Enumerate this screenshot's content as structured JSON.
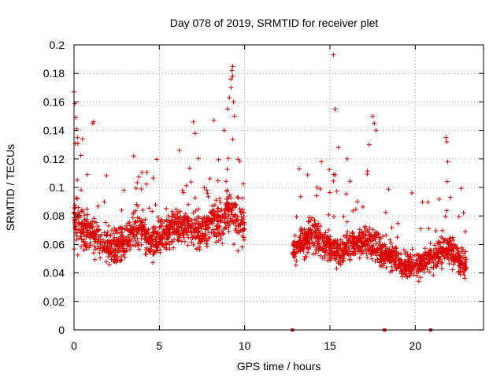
{
  "chart_data": {
    "type": "scatter",
    "title": "Day 078 of 2019, SRMTID for receiver plet",
    "xlabel": "GPS time / hours",
    "ylabel": "SRMTID / TECUs",
    "xlim": [
      0,
      24
    ],
    "ylim": [
      0,
      0.2
    ],
    "xticks": [
      0,
      5,
      10,
      15,
      20
    ],
    "xtick_labels": [
      "0",
      "5",
      "10",
      "15",
      "20"
    ],
    "yticks": [
      0,
      0.02,
      0.04,
      0.06,
      0.08,
      0.1,
      0.12,
      0.14,
      0.16,
      0.18,
      0.2
    ],
    "ytick_labels": [
      "0",
      "0.02",
      "0.04",
      "0.06",
      "0.08",
      "0.1",
      "0.12",
      "0.14",
      "0.16",
      "0.18",
      "0.2"
    ],
    "grid": true,
    "marker": "+",
    "color": "#dd0000",
    "series": [
      {
        "name": "plet",
        "segments": [
          {
            "x_start": 0.0,
            "x_end": 10.0,
            "profile": [
              [
                0.0,
                0.075,
                0.03
              ],
              [
                0.5,
                0.072,
                0.025
              ],
              [
                1.0,
                0.068,
                0.022
              ],
              [
                1.5,
                0.062,
                0.02
              ],
              [
                2.0,
                0.058,
                0.018
              ],
              [
                2.5,
                0.06,
                0.02
              ],
              [
                3.0,
                0.063,
                0.02
              ],
              [
                3.5,
                0.07,
                0.022
              ],
              [
                4.0,
                0.068,
                0.02
              ],
              [
                4.5,
                0.062,
                0.018
              ],
              [
                5.0,
                0.065,
                0.02
              ],
              [
                5.5,
                0.07,
                0.02
              ],
              [
                6.0,
                0.072,
                0.02
              ],
              [
                6.5,
                0.072,
                0.02
              ],
              [
                7.0,
                0.07,
                0.02
              ],
              [
                7.5,
                0.068,
                0.022
              ],
              [
                8.0,
                0.075,
                0.024
              ],
              [
                8.5,
                0.078,
                0.026
              ],
              [
                9.0,
                0.082,
                0.03
              ],
              [
                9.5,
                0.078,
                0.025
              ],
              [
                10.0,
                0.072,
                0.02
              ]
            ]
          },
          {
            "x_start": 12.8,
            "x_end": 23.0,
            "profile": [
              [
                12.8,
                0.055,
                0.015
              ],
              [
                13.5,
                0.062,
                0.018
              ],
              [
                14.0,
                0.068,
                0.02
              ],
              [
                14.5,
                0.062,
                0.018
              ],
              [
                15.0,
                0.058,
                0.016
              ],
              [
                15.5,
                0.055,
                0.016
              ],
              [
                16.0,
                0.058,
                0.016
              ],
              [
                16.5,
                0.06,
                0.018
              ],
              [
                17.0,
                0.062,
                0.018
              ],
              [
                17.5,
                0.062,
                0.02
              ],
              [
                18.0,
                0.055,
                0.018
              ],
              [
                18.5,
                0.052,
                0.016
              ],
              [
                19.0,
                0.048,
                0.016
              ],
              [
                19.5,
                0.046,
                0.016
              ],
              [
                20.0,
                0.045,
                0.016
              ],
              [
                20.5,
                0.046,
                0.016
              ],
              [
                21.0,
                0.05,
                0.016
              ],
              [
                21.5,
                0.055,
                0.018
              ],
              [
                22.0,
                0.058,
                0.018
              ],
              [
                22.5,
                0.05,
                0.016
              ],
              [
                23.0,
                0.045,
                0.014
              ]
            ]
          }
        ],
        "outliers": [
          {
            "x": 0.0,
            "y": 0.167
          },
          {
            "x": 0.05,
            "y": 0.159
          },
          {
            "x": 0.1,
            "y": 0.149
          },
          {
            "x": 0.15,
            "y": 0.141
          },
          {
            "x": 0.2,
            "y": 0.135
          },
          {
            "x": 0.5,
            "y": 0.134
          },
          {
            "x": 1.1,
            "y": 0.145
          },
          {
            "x": 1.15,
            "y": 0.146
          },
          {
            "x": 3.5,
            "y": 0.122
          },
          {
            "x": 7.0,
            "y": 0.146
          },
          {
            "x": 7.1,
            "y": 0.138
          },
          {
            "x": 8.2,
            "y": 0.147
          },
          {
            "x": 8.8,
            "y": 0.14
          },
          {
            "x": 9.0,
            "y": 0.155
          },
          {
            "x": 9.1,
            "y": 0.163
          },
          {
            "x": 9.2,
            "y": 0.17
          },
          {
            "x": 9.2,
            "y": 0.176
          },
          {
            "x": 9.25,
            "y": 0.182
          },
          {
            "x": 9.3,
            "y": 0.185
          },
          {
            "x": 9.3,
            "y": 0.178
          },
          {
            "x": 9.35,
            "y": 0.16
          },
          {
            "x": 9.4,
            "y": 0.15
          },
          {
            "x": 15.2,
            "y": 0.193
          },
          {
            "x": 15.3,
            "y": 0.155
          },
          {
            "x": 15.5,
            "y": 0.128
          },
          {
            "x": 17.5,
            "y": 0.15
          },
          {
            "x": 17.6,
            "y": 0.145
          },
          {
            "x": 17.7,
            "y": 0.14
          },
          {
            "x": 17.3,
            "y": 0.13
          },
          {
            "x": 21.8,
            "y": 0.135
          },
          {
            "x": 21.85,
            "y": 0.132
          },
          {
            "x": 21.9,
            "y": 0.118
          },
          {
            "x": 16.0,
            "y": 0.12
          },
          {
            "x": 13.2,
            "y": 0.113
          },
          {
            "x": 14.5,
            "y": 0.118
          }
        ],
        "baseline_markers_x": [
          12.8,
          18.2,
          20.9
        ]
      }
    ]
  }
}
